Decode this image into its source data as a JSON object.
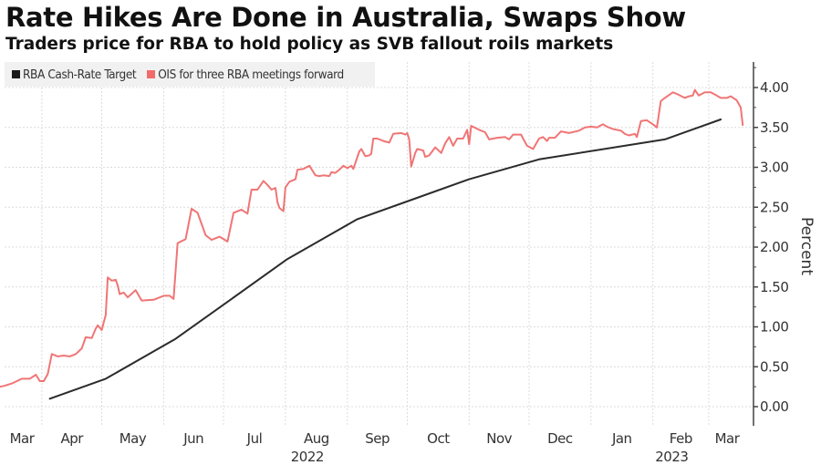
{
  "header": {
    "title": "Rate Hikes Are Done in Australia, Swaps Show",
    "subtitle": "Traders price for RBA to hold policy as SVB fallout roils markets"
  },
  "colors": {
    "cash_rate": "#2b2b2b",
    "ois": "#f07575",
    "grid": "#dcdcdc",
    "axis": "#444444",
    "legend_bg": "#f1f1f1"
  },
  "chart_data": {
    "type": "line",
    "title": "Rate Hikes Are Done in Australia, Swaps Show",
    "subtitle": "Traders price for RBA to hold policy as SVB fallout roils markets",
    "xlabel": "",
    "ylabel": "Percent",
    "ylim": [
      0,
      4.3
    ],
    "yticks": [
      0,
      0.5,
      1,
      1.5,
      2,
      2.5,
      3,
      3.5,
      4
    ],
    "ytick_labels": [
      "0.00",
      "0.50",
      "1.00",
      "1.50",
      "2.00",
      "2.50",
      "3.00",
      "3.50",
      "4.00"
    ],
    "xlim": [
      "2022-03-11",
      "2023-03-23"
    ],
    "xticks": [
      {
        "date": "2022-03-01",
        "label": "Mar",
        "year": ""
      },
      {
        "date": "2022-04-01",
        "label": "Apr",
        "year": ""
      },
      {
        "date": "2022-05-01",
        "label": "May",
        "year": ""
      },
      {
        "date": "2022-06-01",
        "label": "Jun",
        "year": ""
      },
      {
        "date": "2022-07-01",
        "label": "Jul",
        "year": ""
      },
      {
        "date": "2022-08-01",
        "label": "Aug",
        "year": "2022"
      },
      {
        "date": "2022-09-01",
        "label": "Sep",
        "year": ""
      },
      {
        "date": "2022-10-01",
        "label": "Oct",
        "year": ""
      },
      {
        "date": "2022-11-01",
        "label": "Nov",
        "year": ""
      },
      {
        "date": "2022-12-01",
        "label": "Dec",
        "year": ""
      },
      {
        "date": "2023-01-01",
        "label": "Jan",
        "year": ""
      },
      {
        "date": "2023-02-01",
        "label": "Feb",
        "year": "2023"
      },
      {
        "date": "2023-03-01",
        "label": "Mar",
        "year": ""
      }
    ],
    "grid": true,
    "legend_position": "top-left",
    "y_axis_side": "right",
    "series": [
      {
        "name": "RBA Cash-Rate Target",
        "color": "#2b2b2b",
        "points": [
          [
            "2022-04-05",
            0.1
          ],
          [
            "2022-05-03",
            0.35
          ],
          [
            "2022-06-07",
            0.85
          ],
          [
            "2022-07-05",
            1.35
          ],
          [
            "2022-08-02",
            1.85
          ],
          [
            "2022-09-06",
            2.35
          ],
          [
            "2022-10-04",
            2.6
          ],
          [
            "2022-11-01",
            2.85
          ],
          [
            "2022-12-06",
            3.1
          ],
          [
            "2023-02-07",
            3.35
          ],
          [
            "2023-03-07",
            3.6
          ]
        ]
      },
      {
        "name": "OIS for three RBA meetings forward",
        "color": "#f07575",
        "points": [
          [
            "2022-03-11",
            0.25
          ],
          [
            "2022-03-13",
            0.26
          ],
          [
            "2022-03-17",
            0.29
          ],
          [
            "2022-03-22",
            0.35
          ],
          [
            "2022-03-26",
            0.35
          ],
          [
            "2022-03-29",
            0.4
          ],
          [
            "2022-03-31",
            0.32
          ],
          [
            "2022-04-02",
            0.32
          ],
          [
            "2022-04-04",
            0.41
          ],
          [
            "2022-04-06",
            0.66
          ],
          [
            "2022-04-09",
            0.63
          ],
          [
            "2022-04-12",
            0.64
          ],
          [
            "2022-04-15",
            0.63
          ],
          [
            "2022-04-18",
            0.66
          ],
          [
            "2022-04-21",
            0.73
          ],
          [
            "2022-04-23",
            0.87
          ],
          [
            "2022-04-26",
            0.86
          ],
          [
            "2022-04-28",
            0.98
          ],
          [
            "2022-04-29",
            1.02
          ],
          [
            "2022-05-01",
            0.96
          ],
          [
            "2022-05-03",
            1.15
          ],
          [
            "2022-05-04",
            1.62
          ],
          [
            "2022-05-06",
            1.58
          ],
          [
            "2022-05-08",
            1.59
          ],
          [
            "2022-05-09",
            1.52
          ],
          [
            "2022-05-10",
            1.41
          ],
          [
            "2022-05-12",
            1.43
          ],
          [
            "2022-05-14",
            1.37
          ],
          [
            "2022-05-18",
            1.46
          ],
          [
            "2022-05-21",
            1.33
          ],
          [
            "2022-05-27",
            1.34
          ],
          [
            "2022-06-01",
            1.39
          ],
          [
            "2022-06-04",
            1.39
          ],
          [
            "2022-06-06",
            1.35
          ],
          [
            "2022-06-08",
            2.05
          ],
          [
            "2022-06-12",
            2.1
          ],
          [
            "2022-06-15",
            2.48
          ],
          [
            "2022-06-18",
            2.43
          ],
          [
            "2022-06-22",
            2.15
          ],
          [
            "2022-06-25",
            2.09
          ],
          [
            "2022-06-29",
            2.13
          ],
          [
            "2022-07-03",
            2.07
          ],
          [
            "2022-07-06",
            2.43
          ],
          [
            "2022-07-10",
            2.47
          ],
          [
            "2022-07-13",
            2.42
          ],
          [
            "2022-07-15",
            2.72
          ],
          [
            "2022-07-18",
            2.72
          ],
          [
            "2022-07-21",
            2.83
          ],
          [
            "2022-07-23",
            2.78
          ],
          [
            "2022-07-25",
            2.72
          ],
          [
            "2022-07-27",
            2.74
          ],
          [
            "2022-07-28",
            2.56
          ],
          [
            "2022-07-29",
            2.49
          ],
          [
            "2022-07-31",
            2.45
          ],
          [
            "2022-08-01",
            2.75
          ],
          [
            "2022-08-03",
            2.82
          ],
          [
            "2022-08-06",
            2.85
          ],
          [
            "2022-08-07",
            2.97
          ],
          [
            "2022-08-10",
            2.98
          ],
          [
            "2022-08-13",
            3.02
          ],
          [
            "2022-08-16",
            2.9
          ],
          [
            "2022-08-18",
            2.89
          ],
          [
            "2022-08-20",
            2.9
          ],
          [
            "2022-08-23",
            2.89
          ],
          [
            "2022-08-24",
            2.94
          ],
          [
            "2022-08-26",
            2.93
          ],
          [
            "2022-08-28",
            2.97
          ],
          [
            "2022-08-30",
            3.02
          ],
          [
            "2022-09-01",
            2.99
          ],
          [
            "2022-09-03",
            3.02
          ],
          [
            "2022-09-04",
            2.98
          ],
          [
            "2022-09-07",
            3.2
          ],
          [
            "2022-09-08",
            3.23
          ],
          [
            "2022-09-10",
            3.14
          ],
          [
            "2022-09-12",
            3.15
          ],
          [
            "2022-09-13",
            3.17
          ],
          [
            "2022-09-14",
            3.36
          ],
          [
            "2022-09-16",
            3.36
          ],
          [
            "2022-09-19",
            3.33
          ],
          [
            "2022-09-22",
            3.31
          ],
          [
            "2022-09-24",
            3.42
          ],
          [
            "2022-09-28",
            3.43
          ],
          [
            "2022-09-30",
            3.41
          ],
          [
            "2022-10-01",
            3.43
          ],
          [
            "2022-10-02",
            3.35
          ],
          [
            "2022-10-03",
            3.01
          ],
          [
            "2022-10-05",
            3.18
          ],
          [
            "2022-10-06",
            3.23
          ],
          [
            "2022-10-09",
            3.21
          ],
          [
            "2022-10-10",
            3.13
          ],
          [
            "2022-10-12",
            3.15
          ],
          [
            "2022-10-15",
            3.25
          ],
          [
            "2022-10-18",
            3.18
          ],
          [
            "2022-10-20",
            3.3
          ],
          [
            "2022-10-22",
            3.38
          ],
          [
            "2022-10-24",
            3.27
          ],
          [
            "2022-10-26",
            3.36
          ],
          [
            "2022-10-29",
            3.36
          ],
          [
            "2022-10-31",
            3.47
          ],
          [
            "2022-11-01",
            3.29
          ],
          [
            "2022-11-02",
            3.52
          ],
          [
            "2022-11-06",
            3.47
          ],
          [
            "2022-11-09",
            3.44
          ],
          [
            "2022-11-11",
            3.35
          ],
          [
            "2022-11-15",
            3.37
          ],
          [
            "2022-11-19",
            3.38
          ],
          [
            "2022-11-21",
            3.35
          ],
          [
            "2022-11-23",
            3.41
          ],
          [
            "2022-11-27",
            3.41
          ],
          [
            "2022-11-28",
            3.36
          ],
          [
            "2022-11-30",
            3.27
          ],
          [
            "2022-12-03",
            3.23
          ],
          [
            "2022-12-06",
            3.36
          ],
          [
            "2022-12-08",
            3.38
          ],
          [
            "2022-12-10",
            3.33
          ],
          [
            "2022-12-11",
            3.37
          ],
          [
            "2022-12-14",
            3.37
          ],
          [
            "2022-12-17",
            3.45
          ],
          [
            "2022-12-21",
            3.43
          ],
          [
            "2022-12-26",
            3.46
          ],
          [
            "2022-12-29",
            3.5
          ],
          [
            "2023-01-01",
            3.51
          ],
          [
            "2023-01-04",
            3.5
          ],
          [
            "2023-01-07",
            3.54
          ],
          [
            "2023-01-09",
            3.51
          ],
          [
            "2023-01-12",
            3.48
          ],
          [
            "2023-01-16",
            3.46
          ],
          [
            "2023-01-18",
            3.42
          ],
          [
            "2023-01-20",
            3.4
          ],
          [
            "2023-01-23",
            3.42
          ],
          [
            "2023-01-24",
            3.38
          ],
          [
            "2023-01-26",
            3.58
          ],
          [
            "2023-01-29",
            3.59
          ],
          [
            "2023-02-01",
            3.54
          ],
          [
            "2023-02-03",
            3.5
          ],
          [
            "2023-02-05",
            3.83
          ],
          [
            "2023-02-07",
            3.87
          ],
          [
            "2023-02-11",
            3.94
          ],
          [
            "2023-02-13",
            3.92
          ],
          [
            "2023-02-17",
            3.87
          ],
          [
            "2023-02-19",
            3.89
          ],
          [
            "2023-02-21",
            3.9
          ],
          [
            "2023-02-22",
            3.97
          ],
          [
            "2023-02-24",
            3.9
          ],
          [
            "2023-02-27",
            3.94
          ],
          [
            "2023-03-02",
            3.94
          ],
          [
            "2023-03-05",
            3.9
          ],
          [
            "2023-03-07",
            3.87
          ],
          [
            "2023-03-10",
            3.87
          ],
          [
            "2023-03-12",
            3.89
          ],
          [
            "2023-03-15",
            3.84
          ],
          [
            "2023-03-17",
            3.75
          ],
          [
            "2023-03-18",
            3.53
          ]
        ]
      }
    ]
  },
  "legend": {
    "items": [
      {
        "label": "RBA Cash-Rate Target",
        "color": "#1a1a1a"
      },
      {
        "label": "OIS for three RBA meetings forward",
        "color": "#f26b6b"
      }
    ]
  }
}
